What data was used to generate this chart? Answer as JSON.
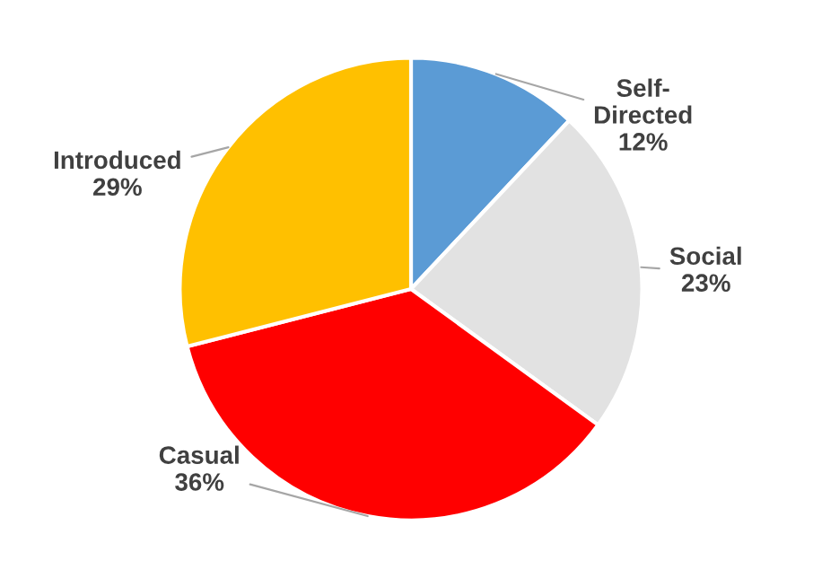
{
  "chart_data": {
    "type": "pie",
    "categories": [
      "Self-Directed",
      "Social",
      "Casual",
      "Introduced"
    ],
    "values": [
      12,
      23,
      36,
      29
    ],
    "colors": [
      "#5b9bd5",
      "#e2e2e2",
      "#ff0000",
      "#ffc000"
    ],
    "value_labels": [
      "12%",
      "23%",
      "36%",
      "29%"
    ]
  }
}
